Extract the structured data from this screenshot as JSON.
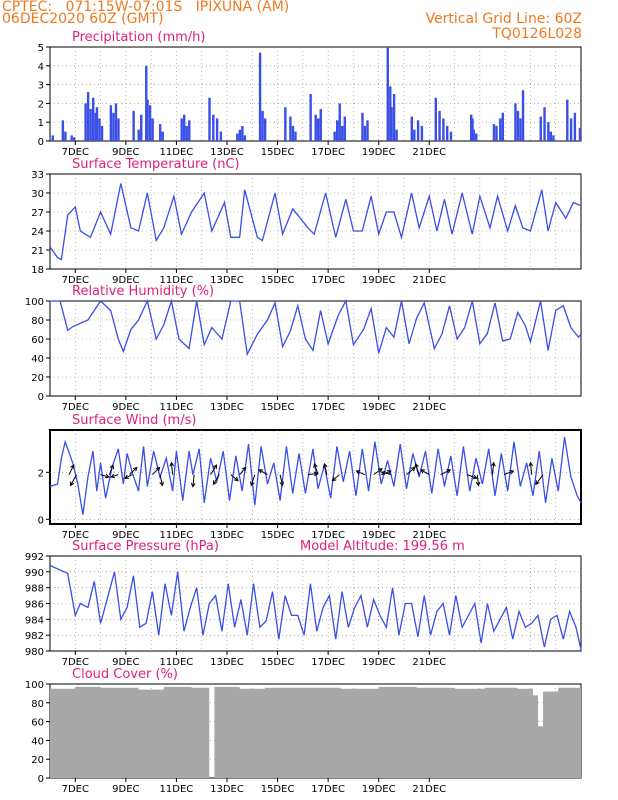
{
  "header": {
    "line1": "CPTEC:   071:15W-07:01S   IPIXUNA (AM)",
    "line2": "06DEC2020 60Z (GMT)",
    "right1": "Vertical Grid Line: 60Z",
    "right2": "TQ0126L028"
  },
  "colors": {
    "header": "#f07820",
    "title": "#e0207a",
    "line": "#3a4ee8",
    "cloud": "#a8a8a8",
    "grid": "#888888"
  },
  "chart_data": [
    {
      "type": "bar",
      "title": "Precipitation  (mm/h)",
      "x_tick_labels": [
        "7DEC",
        "9DEC",
        "11DEC",
        "13DEC",
        "15DEC",
        "17DEC",
        "19DEC",
        "21DEC"
      ],
      "ylim": [
        0,
        5
      ],
      "y_ticks": [
        "0",
        "1",
        "2",
        "3",
        "4",
        "5"
      ],
      "x_unit": "days since 06DEC2020 00Z",
      "x": [
        0.1,
        0.5,
        0.6,
        0.85,
        0.95,
        1.4,
        1.5,
        1.6,
        1.7,
        1.8,
        1.85,
        1.95,
        2.05,
        2.4,
        2.5,
        2.6,
        2.7,
        3.3,
        3.5,
        3.6,
        3.8,
        3.85,
        3.95,
        4.05,
        4.35,
        4.45,
        5.2,
        5.3,
        5.4,
        5.5,
        6.3,
        6.45,
        6.6,
        6.75,
        7.4,
        7.5,
        7.6,
        7.7,
        8.3,
        8.4,
        8.5,
        9.3,
        9.5,
        9.6,
        9.7,
        10.3,
        10.5,
        10.6,
        10.7,
        11.25,
        11.35,
        11.45,
        11.55,
        11.65,
        12.35,
        12.45,
        12.55,
        13.35,
        13.45,
        13.5,
        13.6,
        13.7,
        14.3,
        14.4,
        14.55,
        14.7,
        15.25,
        15.4,
        15.55,
        15.7,
        15.85,
        16.65,
        16.7,
        16.75,
        16.85,
        17.55,
        17.65,
        17.8,
        17.9,
        18.4,
        18.5,
        18.6,
        18.7,
        19.4,
        19.55,
        19.7,
        19.8,
        19.9,
        20.45,
        20.6,
        20.75,
        20.95
      ],
      "y": [
        0.3,
        1.1,
        0.5,
        0.3,
        0.2,
        2.0,
        2.6,
        1.7,
        2.3,
        1.5,
        1.8,
        1.2,
        0.8,
        1.9,
        1.5,
        2.0,
        1.2,
        1.6,
        0.6,
        1.4,
        4.0,
        2.2,
        1.9,
        1.2,
        0.9,
        0.5,
        1.2,
        1.4,
        0.8,
        1.1,
        2.3,
        1.4,
        1.2,
        0.5,
        0.4,
        0.6,
        0.8,
        0.3,
        4.7,
        1.6,
        1.2,
        1.8,
        1.3,
        0.8,
        0.5,
        2.5,
        1.4,
        1.2,
        1.7,
        0.5,
        1.1,
        2.0,
        0.8,
        1.3,
        1.5,
        0.8,
        1.1,
        5.0,
        2.9,
        1.8,
        2.5,
        0.6,
        1.3,
        0.6,
        1.1,
        0.8,
        2.3,
        1.6,
        1.2,
        0.8,
        0.5,
        1.4,
        1.2,
        0.6,
        0.4,
        0.9,
        0.8,
        1.2,
        1.5,
        2.0,
        1.6,
        1.2,
        2.7,
        1.3,
        1.8,
        1.0,
        0.5,
        0.3,
        2.2,
        1.2,
        1.5,
        0.7
      ]
    },
    {
      "type": "line",
      "title": "Surface Temperature  (nC)",
      "x_tick_labels": [
        "7DEC",
        "9DEC",
        "11DEC",
        "13DEC",
        "15DEC",
        "17DEC",
        "19DEC",
        "21DEC"
      ],
      "ylim": [
        18,
        33
      ],
      "y_ticks": [
        "18",
        "21",
        "24",
        "27",
        "30",
        "33"
      ],
      "x": [
        0,
        0.3,
        0.45,
        0.7,
        1.0,
        1.2,
        1.6,
        2.0,
        2.4,
        2.8,
        3.2,
        3.5,
        3.85,
        4.2,
        4.5,
        4.9,
        5.2,
        5.6,
        6.1,
        6.4,
        6.9,
        7.15,
        7.5,
        7.7,
        8.2,
        8.4,
        8.9,
        9.2,
        9.6,
        9.8,
        10.2,
        10.45,
        10.9,
        11.3,
        11.7,
        12.0,
        12.35,
        12.7,
        13.0,
        13.3,
        13.6,
        13.9,
        14.3,
        14.6,
        15.0,
        15.3,
        15.6,
        15.9,
        16.3,
        16.7,
        17.0,
        17.4,
        17.7,
        18.1,
        18.4,
        18.7,
        19.0,
        19.45,
        19.7,
        20.0,
        20.4,
        20.7,
        21.0
      ],
      "y": [
        21.5,
        19.8,
        19.5,
        26.5,
        27.8,
        24.0,
        23.0,
        27.0,
        23.5,
        31.5,
        24.5,
        24.0,
        30.0,
        22.5,
        24.5,
        29.5,
        23.5,
        27.0,
        30.0,
        24.0,
        28.5,
        23.0,
        23.0,
        30.5,
        23.0,
        22.5,
        30.0,
        23.5,
        27.5,
        26.5,
        24.5,
        23.5,
        30.0,
        23.0,
        29.0,
        24.0,
        24.0,
        29.5,
        23.5,
        27.0,
        27.0,
        23.0,
        30.0,
        24.5,
        29.5,
        24.0,
        29.0,
        23.5,
        30.0,
        23.5,
        29.5,
        24.5,
        29.5,
        24.0,
        28.0,
        24.5,
        24.0,
        30.5,
        24.0,
        28.5,
        26.0,
        28.5,
        28.0
      ]
    },
    {
      "type": "line",
      "title": "Relative Humidity  (%)",
      "x_tick_labels": [
        "7DEC",
        "9DEC",
        "11DEC",
        "13DEC",
        "15DEC",
        "17DEC",
        "19DEC",
        "21DEC"
      ],
      "ylim": [
        0,
        100
      ],
      "y_ticks": [
        "0",
        "20",
        "40",
        "60",
        "80",
        "100"
      ],
      "x": [
        0,
        0.4,
        0.7,
        0.9,
        1.5,
        2.0,
        2.4,
        2.7,
        2.9,
        3.2,
        3.5,
        3.85,
        4.2,
        4.5,
        4.8,
        5.1,
        5.5,
        5.8,
        6.1,
        6.4,
        6.8,
        7.15,
        7.5,
        7.8,
        8.2,
        8.6,
        8.9,
        9.2,
        9.5,
        9.8,
        10.1,
        10.4,
        10.7,
        11.0,
        11.4,
        11.7,
        12.0,
        12.4,
        12.7,
        13.0,
        13.3,
        13.6,
        13.9,
        14.2,
        14.5,
        14.8,
        15.2,
        15.5,
        15.8,
        16.1,
        16.4,
        16.7,
        17.0,
        17.3,
        17.6,
        17.9,
        18.2,
        18.5,
        18.8,
        19.0,
        19.4,
        19.7,
        20.0,
        20.3,
        20.6,
        20.9,
        21.0
      ],
      "y": [
        100,
        100,
        69,
        73,
        80,
        100,
        90,
        60,
        47,
        70,
        80,
        100,
        60,
        75,
        100,
        60,
        50,
        100,
        54,
        72,
        60,
        100,
        100,
        44,
        65,
        80,
        98,
        52,
        68,
        95,
        60,
        48,
        90,
        55,
        85,
        100,
        54,
        70,
        92,
        45,
        72,
        62,
        100,
        55,
        82,
        98,
        50,
        65,
        95,
        60,
        72,
        100,
        55,
        66,
        98,
        58,
        60,
        88,
        74,
        57,
        100,
        48,
        90,
        95,
        72,
        62,
        65
      ]
    },
    {
      "type": "line",
      "title": "Surface Wind  (m/s)",
      "x_tick_labels": [
        "7DEC",
        "9DEC",
        "11DEC",
        "13DEC",
        "15DEC",
        "17DEC",
        "19DEC",
        "21DEC"
      ],
      "ylim": [
        -0.2,
        3.8
      ],
      "y_ticks": [
        "0",
        "2"
      ],
      "x": [
        0,
        0.3,
        0.45,
        0.6,
        0.9,
        1.1,
        1.3,
        1.5,
        1.7,
        1.85,
        2.0,
        2.2,
        2.45,
        2.7,
        2.9,
        3.05,
        3.25,
        3.5,
        3.7,
        3.85,
        4.1,
        4.35,
        4.6,
        4.85,
        5.0,
        5.25,
        5.5,
        5.65,
        5.9,
        6.1,
        6.35,
        6.6,
        6.85,
        7.1,
        7.35,
        7.6,
        7.85,
        8.1,
        8.35,
        8.6,
        8.85,
        9.1,
        9.35,
        9.6,
        9.85,
        10.1,
        10.4,
        10.6,
        10.85,
        11.1,
        11.35,
        11.6,
        11.85,
        12.1,
        12.35,
        12.6,
        12.85,
        13.1,
        13.35,
        13.6,
        13.85,
        14.1,
        14.35,
        14.6,
        14.85,
        15.1,
        15.35,
        15.6,
        15.85,
        16.1,
        16.35,
        16.6,
        16.85,
        17.1,
        17.35,
        17.6,
        17.85,
        18.1,
        18.35,
        18.6,
        18.85,
        19.1,
        19.35,
        19.6,
        19.85,
        20.1,
        20.35,
        20.6,
        20.85,
        21.0
      ],
      "y": [
        1.4,
        1.5,
        2.6,
        3.3,
        2.4,
        1.5,
        0.2,
        1.8,
        2.9,
        1.2,
        2.4,
        0.9,
        2.2,
        3.0,
        1.5,
        2.8,
        2.0,
        1.2,
        3.1,
        1.4,
        2.9,
        1.8,
        2.6,
        1.2,
        2.9,
        0.8,
        2.9,
        1.9,
        3.0,
        0.7,
        2.6,
        1.6,
        2.9,
        0.8,
        2.7,
        1.2,
        3.2,
        0.6,
        3.1,
        1.5,
        2.4,
        0.8,
        3.1,
        1.1,
        2.8,
        1.1,
        3.0,
        1.3,
        2.3,
        0.9,
        3.1,
        1.6,
        2.9,
        1.0,
        3.0,
        1.2,
        3.3,
        1.5,
        2.5,
        1.4,
        3.2,
        1.3,
        2.8,
        1.8,
        2.9,
        1.1,
        3.0,
        1.4,
        2.7,
        1.0,
        3.1,
        1.2,
        2.6,
        1.5,
        3.0,
        1.0,
        2.8,
        1.2,
        3.3,
        1.4,
        2.4,
        1.0,
        2.9,
        0.7,
        2.6,
        1.2,
        3.5,
        1.8,
        1.0,
        0.7
      ],
      "arrows": [
        {
          "x": 0.75,
          "u": 0.4,
          "v": -0.8
        },
        {
          "x": 1.05,
          "u": -0.5,
          "v": 0.9
        },
        {
          "x": 2.0,
          "u": 0.7,
          "v": 0.2
        },
        {
          "x": 2.35,
          "u": 0.3,
          "v": -0.8
        },
        {
          "x": 2.7,
          "u": -0.6,
          "v": 0.2
        },
        {
          "x": 3.15,
          "u": 0.6,
          "v": -0.6
        },
        {
          "x": 3.25,
          "u": -0.6,
          "v": 0.3
        },
        {
          "x": 4.05,
          "u": 0.6,
          "v": -0.6
        },
        {
          "x": 4.35,
          "u": 0.2,
          "v": 0.9
        },
        {
          "x": 4.85,
          "u": -0.1,
          "v": -1.0
        },
        {
          "x": 5.7,
          "u": -0.1,
          "v": 1.0
        },
        {
          "x": 6.35,
          "u": 0.5,
          "v": -0.8
        },
        {
          "x": 6.7,
          "u": -0.5,
          "v": 0.8
        },
        {
          "x": 7.15,
          "u": 0.6,
          "v": 0.5
        },
        {
          "x": 7.5,
          "u": 0.5,
          "v": -0.6
        },
        {
          "x": 8.1,
          "u": -0.3,
          "v": 0.9
        },
        {
          "x": 8.6,
          "u": -0.7,
          "v": -0.4
        },
        {
          "x": 9.1,
          "u": 0.2,
          "v": 0.9
        },
        {
          "x": 10.2,
          "u": 0.8,
          "v": -0.1
        },
        {
          "x": 10.6,
          "u": -0.3,
          "v": -0.9
        },
        {
          "x": 10.95,
          "u": -0.2,
          "v": -0.9
        },
        {
          "x": 11.45,
          "u": -0.6,
          "v": 0.5
        },
        {
          "x": 12.45,
          "u": -0.7,
          "v": -0.3
        },
        {
          "x": 12.8,
          "u": 0.7,
          "v": -0.5
        },
        {
          "x": 13.1,
          "u": 0.8,
          "v": -0.3
        },
        {
          "x": 13.5,
          "u": -0.8,
          "v": -0.2
        },
        {
          "x": 14.1,
          "u": 0.7,
          "v": -0.6
        },
        {
          "x": 14.6,
          "u": -0.3,
          "v": -0.9
        },
        {
          "x": 15.0,
          "u": -0.7,
          "v": -0.4
        },
        {
          "x": 15.45,
          "u": 0.8,
          "v": -0.4
        },
        {
          "x": 16.5,
          "u": 0.8,
          "v": 0.3
        },
        {
          "x": 16.9,
          "u": 0.1,
          "v": 0.9
        },
        {
          "x": 17.5,
          "u": 0.1,
          "v": -1.0
        },
        {
          "x": 17.95,
          "u": 0.8,
          "v": -0.3
        },
        {
          "x": 19.05,
          "u": -0.1,
          "v": -1.0
        },
        {
          "x": 19.5,
          "u": -0.6,
          "v": 0.8
        }
      ]
    },
    {
      "type": "line",
      "title": "Surface Pressure  (hPa)",
      "annotation": "Model Altitude:  199.56  m",
      "x_tick_labels": [
        "7DEC",
        "9DEC",
        "11DEC",
        "13DEC",
        "15DEC",
        "17DEC",
        "19DEC",
        "21DEC"
      ],
      "ylim": [
        980,
        992
      ],
      "y_ticks": [
        "980",
        "982",
        "984",
        "986",
        "988",
        "990",
        "992"
      ],
      "x": [
        0,
        0.35,
        0.7,
        1.0,
        1.2,
        1.5,
        1.75,
        2.0,
        2.3,
        2.55,
        2.8,
        3.05,
        3.3,
        3.55,
        3.8,
        4.05,
        4.3,
        4.55,
        4.8,
        5.05,
        5.3,
        5.55,
        5.8,
        6.05,
        6.3,
        6.55,
        6.8,
        7.05,
        7.3,
        7.55,
        7.8,
        8.05,
        8.3,
        8.55,
        8.8,
        9.05,
        9.3,
        9.55,
        9.8,
        10.05,
        10.3,
        10.55,
        10.8,
        11.05,
        11.3,
        11.55,
        11.8,
        12.05,
        12.3,
        12.55,
        12.8,
        13.05,
        13.3,
        13.55,
        13.8,
        14.05,
        14.3,
        14.55,
        14.8,
        15.05,
        15.3,
        15.55,
        15.8,
        16.05,
        16.3,
        16.55,
        16.8,
        17.05,
        17.3,
        17.55,
        17.8,
        18.05,
        18.3,
        18.55,
        18.8,
        19.05,
        19.3,
        19.55,
        19.8,
        20.05,
        20.3,
        20.55,
        20.8,
        21.0
      ],
      "y": [
        990.8,
        990.3,
        989.8,
        984.5,
        986.0,
        985.5,
        988.8,
        983.5,
        987.0,
        990.0,
        984.0,
        985.5,
        989.5,
        983.0,
        983.5,
        987.5,
        982.0,
        988.5,
        984.5,
        990.0,
        982.5,
        985.5,
        988.0,
        982.0,
        986.0,
        987.0,
        982.5,
        988.5,
        983.0,
        986.5,
        982.0,
        988.5,
        983.0,
        983.8,
        987.5,
        981.5,
        987.0,
        984.5,
        984.5,
        982.0,
        988.5,
        982.5,
        985.5,
        987.0,
        981.5,
        987.5,
        983.0,
        985.5,
        987.0,
        983.0,
        986.5,
        984.5,
        983.0,
        988.0,
        982.0,
        986.0,
        986.0,
        981.8,
        987.0,
        982.0,
        985.0,
        986.0,
        982.0,
        987.0,
        983.0,
        984.5,
        986.0,
        981.0,
        986.0,
        982.5,
        984.0,
        985.5,
        981.5,
        985.0,
        983.0,
        983.5,
        984.5,
        980.5,
        984.0,
        984.5,
        981.5,
        985.0,
        983.0,
        980.2
      ]
    },
    {
      "type": "bar",
      "title": "Cloud Cover  (%)",
      "x_tick_labels": [
        "7DEC",
        "9DEC",
        "11DEC",
        "13DEC",
        "15DEC",
        "17DEC",
        "19DEC",
        "21DEC"
      ],
      "ylim": [
        0,
        100
      ],
      "y_ticks": [
        "0",
        "20",
        "40",
        "60",
        "80",
        "100"
      ],
      "x": [
        0.5,
        1.0,
        2.0,
        3.5,
        4.5,
        5.6,
        6.3,
        6.5,
        7.5,
        8.5,
        10.5,
        11.5,
        13.0,
        14.5,
        16.0,
        17.2,
        18.5,
        19.1,
        19.3,
        19.5,
        20.1
      ],
      "y": [
        95,
        97,
        96,
        94,
        97,
        96,
        0,
        97,
        95,
        96,
        96,
        95,
        97,
        96,
        95,
        96,
        95,
        88,
        55,
        92,
        96
      ]
    }
  ]
}
